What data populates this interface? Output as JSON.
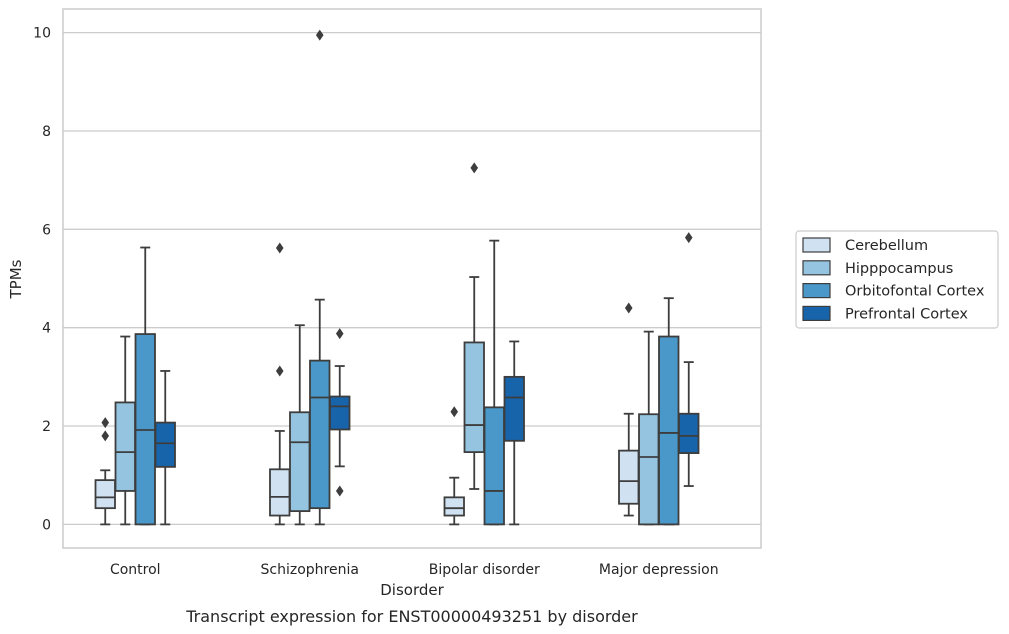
{
  "chart_data": {
    "type": "box",
    "caption": "Transcript expression for ENST00000493251 by disorder",
    "xlabel": "Disorder",
    "ylabel": "TPMs",
    "ylim": [
      -0.48,
      10.48
    ],
    "yticks": [
      0,
      2,
      4,
      6,
      8,
      10
    ],
    "grid": "horizontal",
    "legend_placement": "right",
    "categories": [
      "Control",
      "Schizophrenia",
      "Bipolar disorder",
      "Major depression"
    ],
    "colors": {
      "line": "#3d3d3d",
      "grid": "#cccccc",
      "frame": "#cccccc"
    },
    "series": [
      {
        "name": "Cerebellum",
        "color": "#d0e1f2",
        "boxes": [
          {
            "whisker_low": 0.0,
            "q1": 0.33,
            "median": 0.55,
            "q3": 0.9,
            "whisker_high": 1.1,
            "outliers": [
              1.8,
              2.07
            ]
          },
          {
            "whisker_low": 0.0,
            "q1": 0.18,
            "median": 0.56,
            "q3": 1.12,
            "whisker_high": 1.9,
            "outliers": [
              3.12,
              5.62
            ]
          },
          {
            "whisker_low": 0.0,
            "q1": 0.18,
            "median": 0.33,
            "q3": 0.55,
            "whisker_high": 0.95,
            "outliers": [
              2.29
            ]
          },
          {
            "whisker_low": 0.18,
            "q1": 0.42,
            "median": 0.88,
            "q3": 1.5,
            "whisker_high": 2.25,
            "outliers": [
              4.4
            ]
          }
        ]
      },
      {
        "name": "Hipppocampus",
        "color": "#94c4df",
        "boxes": [
          {
            "whisker_low": 0.0,
            "q1": 0.68,
            "median": 1.47,
            "q3": 2.48,
            "whisker_high": 3.82,
            "outliers": []
          },
          {
            "whisker_low": 0.0,
            "q1": 0.27,
            "median": 1.67,
            "q3": 2.28,
            "whisker_high": 4.05,
            "outliers": []
          },
          {
            "whisker_low": 0.72,
            "q1": 1.47,
            "median": 2.02,
            "q3": 3.7,
            "whisker_high": 5.03,
            "outliers": [
              7.25
            ]
          },
          {
            "whisker_low": 0.0,
            "q1": 0.0,
            "median": 1.37,
            "q3": 2.24,
            "whisker_high": 3.92,
            "outliers": []
          }
        ]
      },
      {
        "name": "Orbitofontal Cortex",
        "color": "#4a98c9",
        "boxes": [
          {
            "whisker_low": 0.0,
            "q1": 0.0,
            "median": 1.92,
            "q3": 3.87,
            "whisker_high": 5.63,
            "outliers": []
          },
          {
            "whisker_low": 0.0,
            "q1": 0.33,
            "median": 2.58,
            "q3": 3.33,
            "whisker_high": 4.57,
            "outliers": [
              9.95
            ]
          },
          {
            "whisker_low": 0.0,
            "q1": 0.0,
            "median": 0.68,
            "q3": 2.38,
            "whisker_high": 5.77,
            "outliers": []
          },
          {
            "whisker_low": 0.0,
            "q1": 0.0,
            "median": 1.86,
            "q3": 3.82,
            "whisker_high": 4.6,
            "outliers": []
          }
        ]
      },
      {
        "name": "Prefrontal Cortex",
        "color": "#1764ab",
        "boxes": [
          {
            "whisker_low": 0.0,
            "q1": 1.17,
            "median": 1.65,
            "q3": 2.07,
            "whisker_high": 3.12,
            "outliers": []
          },
          {
            "whisker_low": 1.18,
            "q1": 1.93,
            "median": 2.4,
            "q3": 2.6,
            "whisker_high": 3.22,
            "outliers": [
              0.68,
              3.88
            ]
          },
          {
            "whisker_low": 0.0,
            "q1": 1.7,
            "median": 2.58,
            "q3": 3.0,
            "whisker_high": 3.72,
            "outliers": []
          },
          {
            "whisker_low": 0.78,
            "q1": 1.45,
            "median": 1.8,
            "q3": 2.25,
            "whisker_high": 3.3,
            "outliers": [
              5.83
            ]
          }
        ]
      }
    ]
  }
}
